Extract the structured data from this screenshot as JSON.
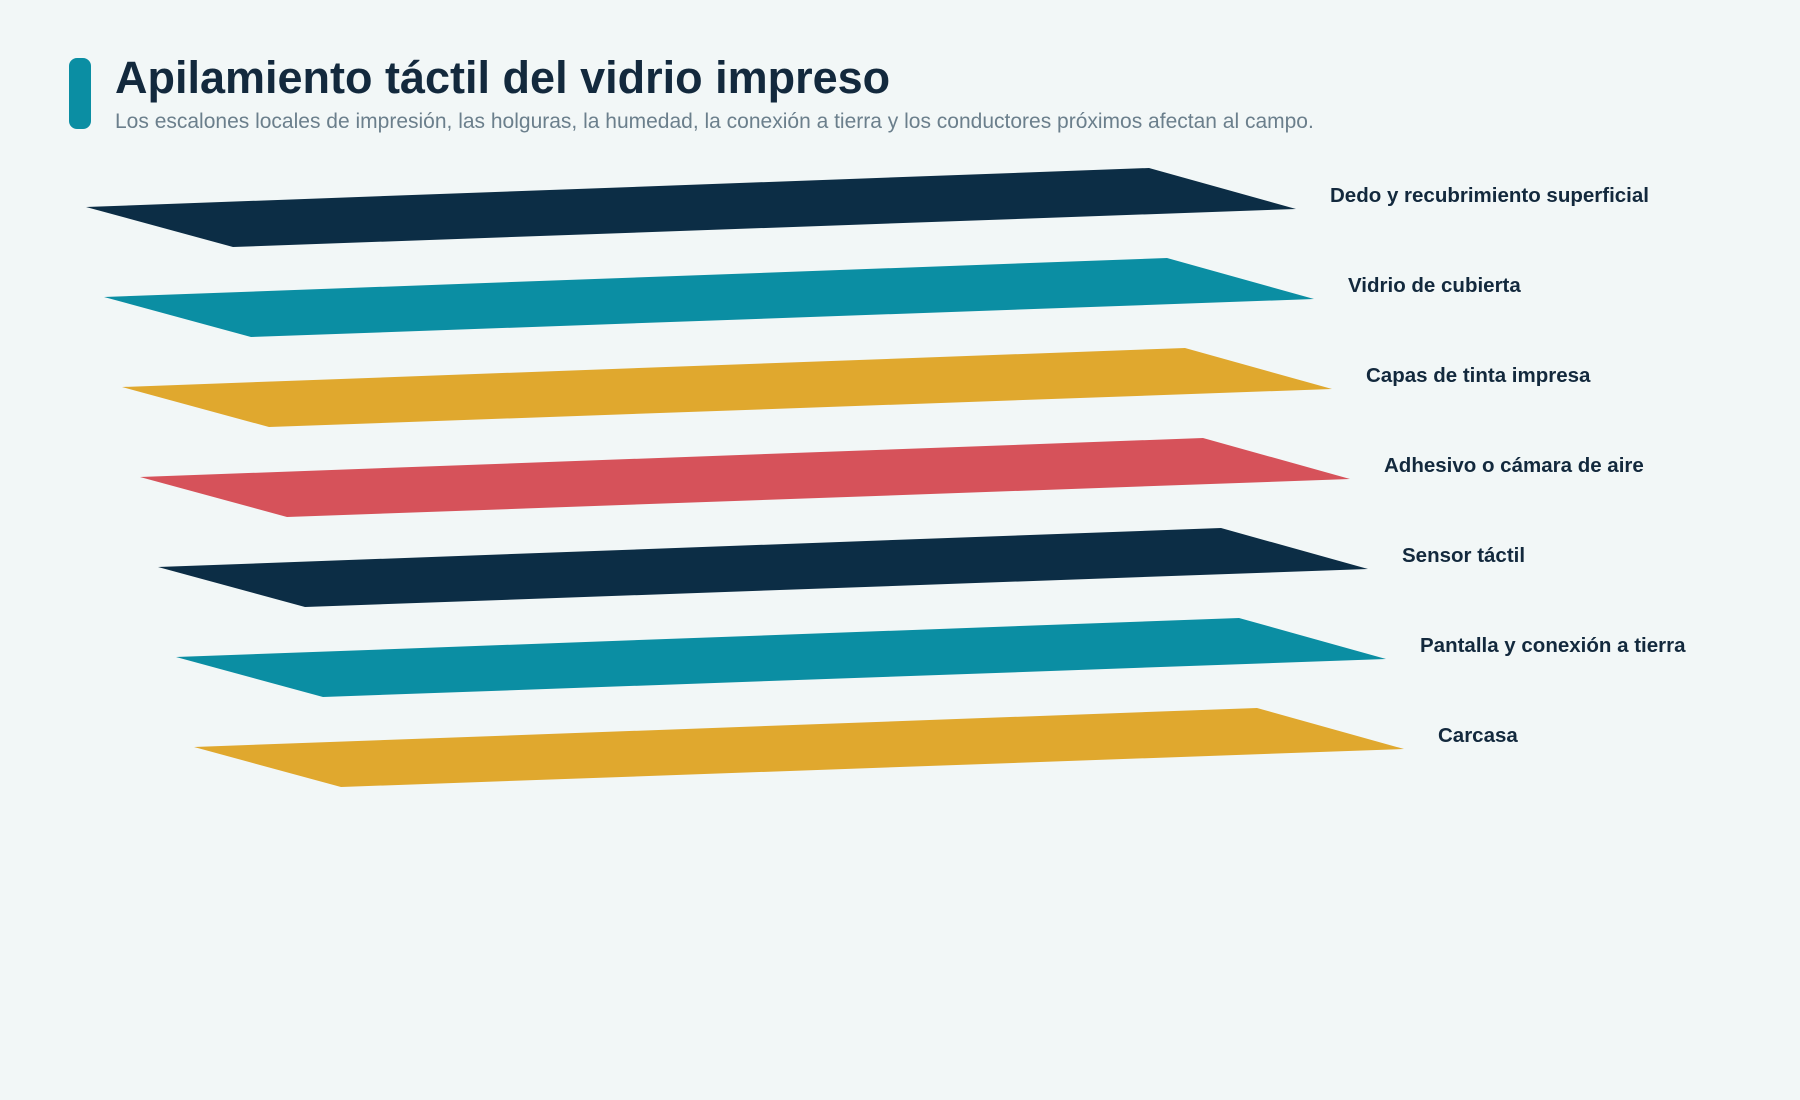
{
  "header": {
    "title": "Apilamiento táctil del vidrio impreso",
    "subtitle": "Los escalones locales de impresión, las holguras, la humedad, la conexión a tierra y los conductores próximos afectan al campo."
  },
  "colors": {
    "background": "#f2f7f7",
    "accent": "#0b8ea3",
    "text": "#13293d",
    "muted": "#6b7f8c"
  },
  "layers": [
    {
      "label": "Dedo y recubrimiento superficial",
      "color": "#0c2d45"
    },
    {
      "label": "Vidrio de cubierta",
      "color": "#0b8ea3"
    },
    {
      "label": "Capas de tinta impresa",
      "color": "#e0a82e"
    },
    {
      "label": "Adhesivo o cámara de aire",
      "color": "#d6525a"
    },
    {
      "label": "Sensor táctil",
      "color": "#0c2d45"
    },
    {
      "label": "Pantalla y conexión a tierra",
      "color": "#0b8ea3"
    },
    {
      "label": "Carcasa",
      "color": "#e0a82e"
    }
  ]
}
